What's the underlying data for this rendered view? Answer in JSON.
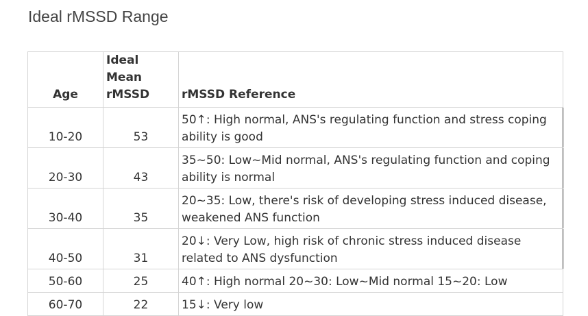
{
  "page": {
    "title": "Ideal rMSSD Range"
  },
  "table": {
    "headers": {
      "age": "Age",
      "mean": "Ideal Mean rMSSD",
      "reference": "rMSSD Reference"
    },
    "rows": [
      {
        "age": "10-20",
        "mean": "53",
        "reference": "50↑: High normal, ANS's regulating function and stress coping ability is good"
      },
      {
        "age": "20-30",
        "mean": "43",
        "reference": "35~50: Low~Mid normal, ANS's regulating function and coping ability is normal"
      },
      {
        "age": "30-40",
        "mean": "35",
        "reference": "20~35: Low, there's risk of developing stress induced disease, weakened ANS function"
      },
      {
        "age": "40-50",
        "mean": "31",
        "reference": "20↓: Very Low, high risk of chronic stress induced disease related to ANS dysfunction"
      },
      {
        "age": "50-60",
        "mean": "25",
        "reference": "40↑: High normal 20~30: Low~Mid normal 15~20: Low"
      },
      {
        "age": "60-70",
        "mean": "22",
        "reference": "15↓: Very low"
      }
    ]
  }
}
